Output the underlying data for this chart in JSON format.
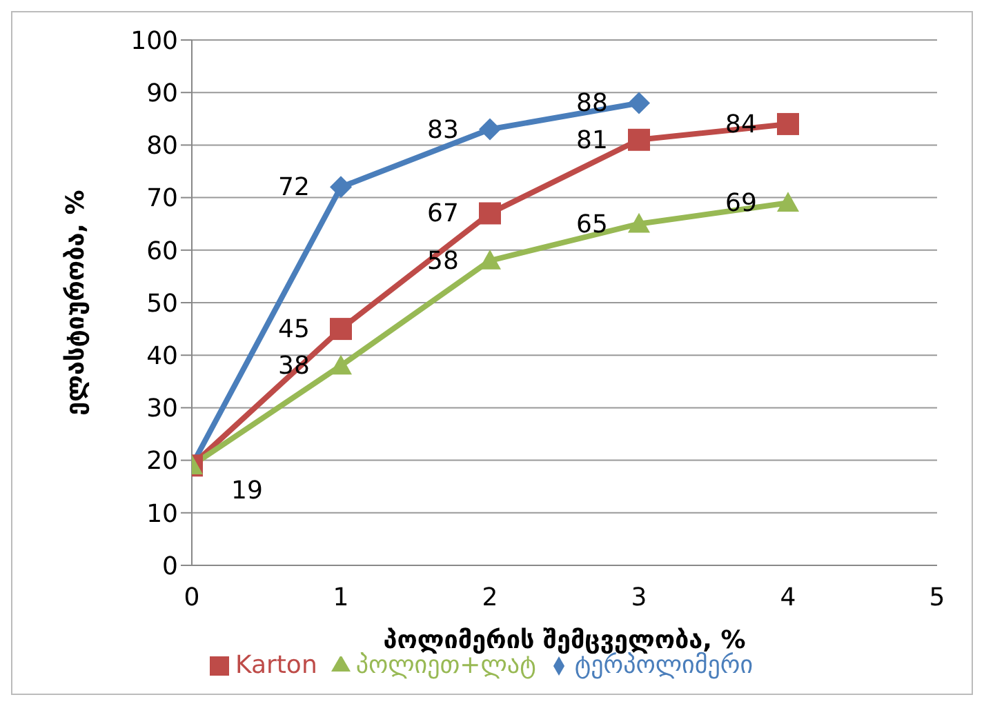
{
  "chart_data": {
    "type": "line",
    "xlabel": "პოლიმერის შემცველობა, %",
    "ylabel": "ელასტიურობა, %",
    "x": [
      0,
      1,
      2,
      3,
      4
    ],
    "xlim": [
      0,
      5
    ],
    "xticks": [
      0,
      1,
      2,
      3,
      4,
      5
    ],
    "ylim": [
      0,
      100
    ],
    "yticks": [
      0,
      10,
      20,
      30,
      40,
      50,
      60,
      70,
      80,
      90,
      100
    ],
    "grid": "y",
    "legend": "bottom",
    "series": [
      {
        "name": "ტერპოლიმერი",
        "color": "#4a7ebb",
        "marker": "diamond",
        "values": [
          19,
          72,
          83,
          88,
          null
        ],
        "value_labels": [
          null,
          "72",
          "83",
          "88",
          null
        ]
      },
      {
        "name": "Karton",
        "color": "#be4b48",
        "marker": "square",
        "values": [
          19,
          45,
          67,
          81,
          84
        ],
        "value_labels": [
          null,
          "45",
          "67",
          "81",
          "84"
        ]
      },
      {
        "name": "პოლიეთ+ლატ",
        "color": "#98b954",
        "marker": "triangle",
        "values": [
          19,
          38,
          58,
          65,
          69
        ],
        "value_labels": [
          "19",
          "38",
          "58",
          "65",
          "69"
        ]
      }
    ]
  }
}
